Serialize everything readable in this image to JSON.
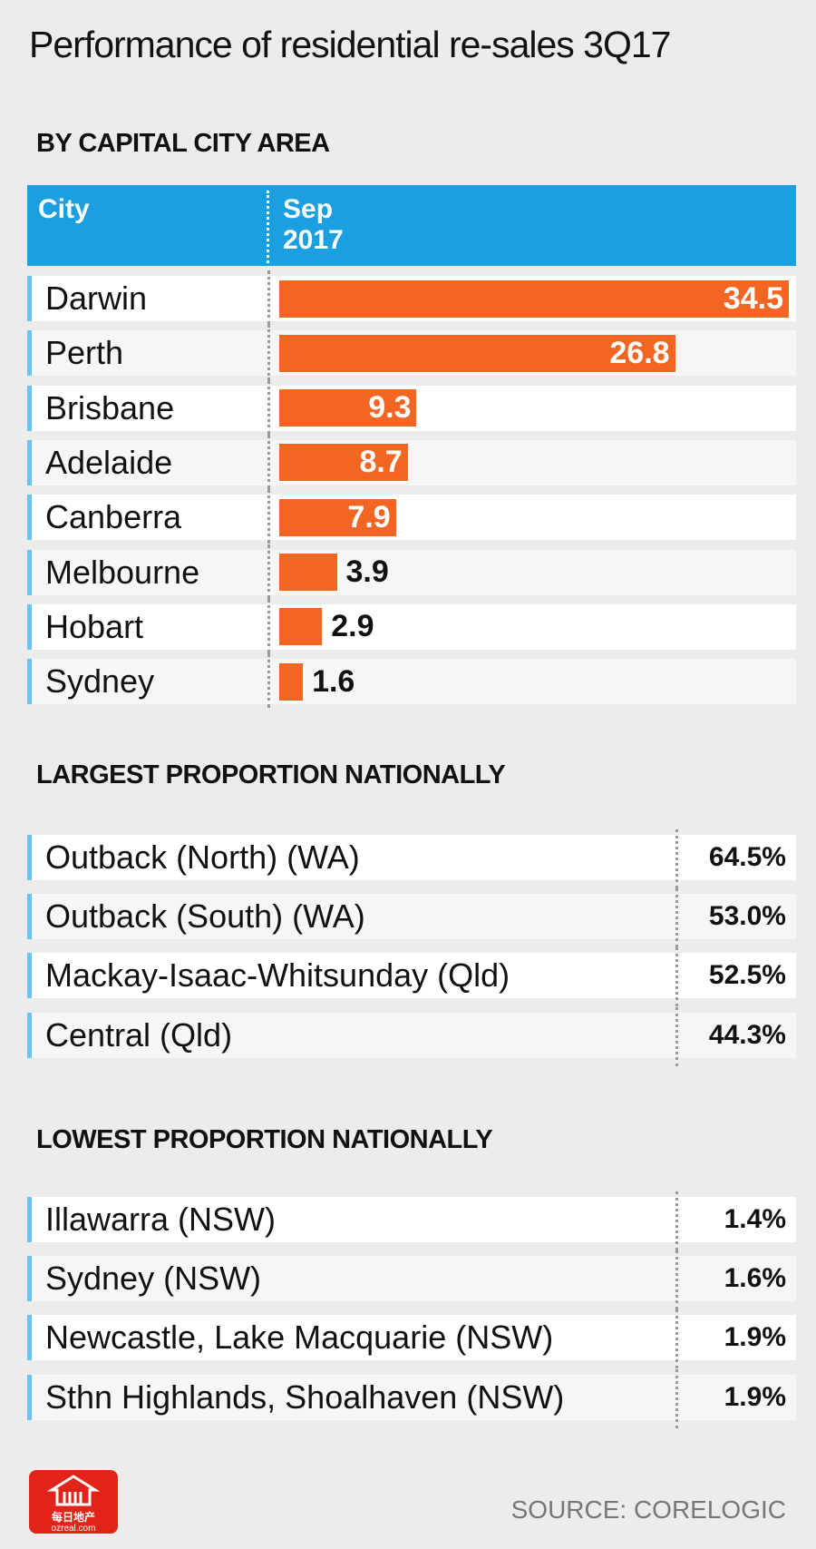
{
  "title": "Performance of residential re-sales 3Q17",
  "chart_data": {
    "type": "bar",
    "subtitle": "BY CAPITAL CITY AREA",
    "category_header": "City",
    "value_header": "Sep 2017",
    "categories": [
      "Darwin",
      "Perth",
      "Brisbane",
      "Adelaide",
      "Canberra",
      "Melbourne",
      "Hobart",
      "Sydney"
    ],
    "values": [
      34.5,
      26.8,
      9.3,
      8.7,
      7.9,
      3.9,
      2.9,
      1.6
    ],
    "color": "#f26522"
  },
  "largest": {
    "heading": "LARGEST PROPORTION NATIONALLY",
    "rows": [
      [
        "Outback (North) (WA)",
        "64.5%"
      ],
      [
        "Outback (South) (WA)",
        "53.0%"
      ],
      [
        "Mackay-Isaac-Whitsunday (Qld)",
        "52.5%"
      ],
      [
        "Central (Qld)",
        "44.3%"
      ]
    ]
  },
  "lowest": {
    "heading": "LOWEST PROPORTION NATIONALLY",
    "rows": [
      [
        "Illawarra (NSW)",
        "1.4%"
      ],
      [
        "Sydney (NSW)",
        "1.6%"
      ],
      [
        "Newcastle, Lake Macquarie (NSW)",
        "1.9%"
      ],
      [
        "Sthn Highlands, Shoalhaven (NSW)",
        "1.9%"
      ]
    ]
  },
  "source": "SOURCE: CORELOGIC",
  "logo": {
    "name": "每日地产",
    "url": "ozreal.com"
  }
}
